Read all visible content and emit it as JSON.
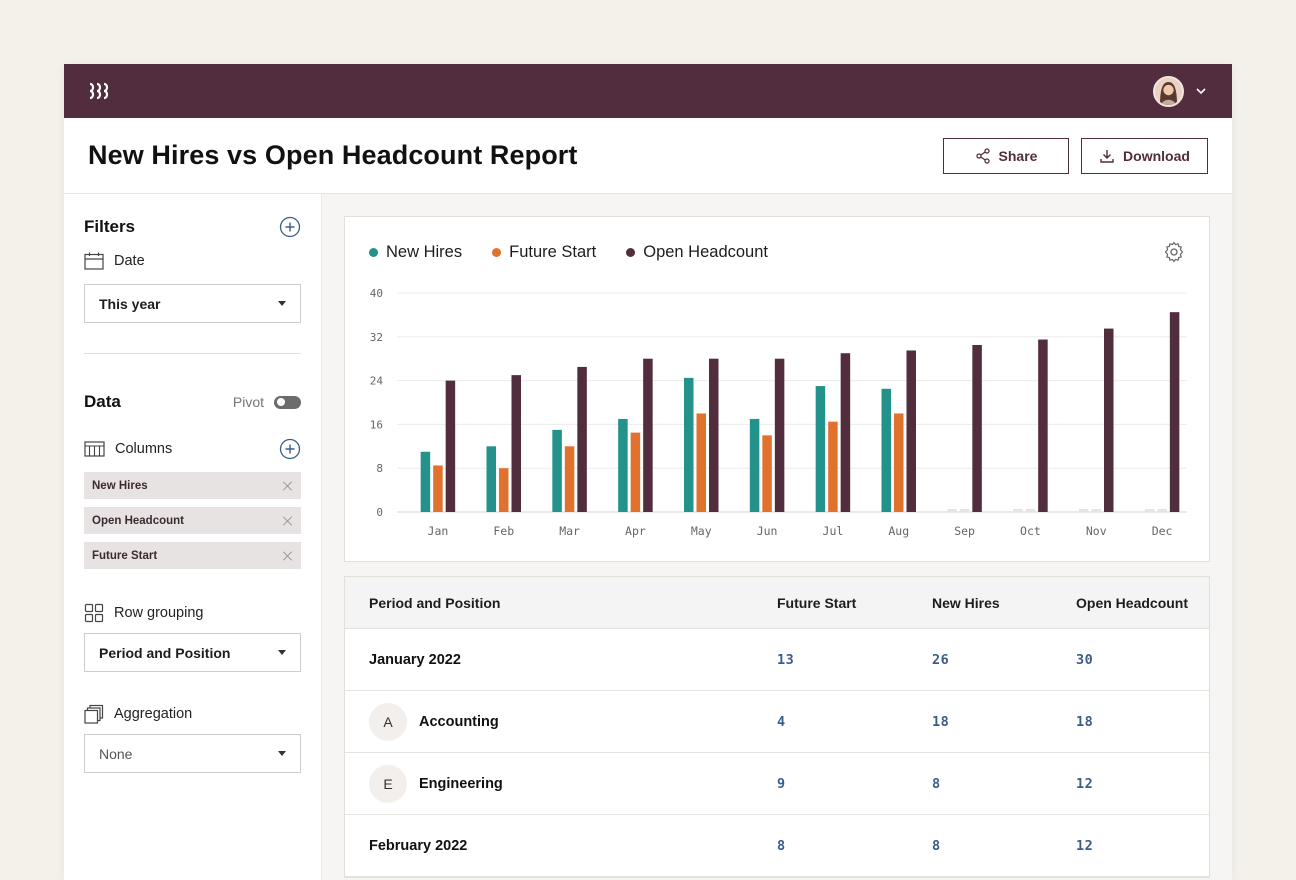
{
  "header": {
    "title": "New Hires vs Open Headcount Report",
    "share_label": "Share",
    "download_label": "Download"
  },
  "filters": {
    "title": "Filters",
    "date_label": "Date",
    "date_value": "This year"
  },
  "data_section": {
    "title": "Data",
    "pivot_label": "Pivot",
    "pivot_on": false,
    "columns_label": "Columns",
    "columns": [
      "New Hires",
      "Open Headcount",
      "Future Start"
    ],
    "row_grouping_label": "Row grouping",
    "row_grouping_value": "Period and Position",
    "aggregation_label": "Aggregation",
    "aggregation_value": "None"
  },
  "colors": {
    "new_hires": "#23928a",
    "future_start": "#e0722e",
    "open_headcount": "#512d3d",
    "empty": "#e4e4e4"
  },
  "chart_data": {
    "type": "bar",
    "categories": [
      "Jan",
      "Feb",
      "Mar",
      "Apr",
      "May",
      "Jun",
      "Jul",
      "Aug",
      "Sep",
      "Oct",
      "Nov",
      "Dec"
    ],
    "series": [
      {
        "name": "New Hires",
        "values": [
          11,
          12,
          15,
          17,
          24.5,
          17,
          23,
          22.5,
          0,
          0,
          0,
          0
        ]
      },
      {
        "name": "Future Start",
        "values": [
          8.5,
          8,
          12,
          14.5,
          18,
          14,
          16.5,
          18,
          0,
          0,
          0,
          0
        ]
      },
      {
        "name": "Open Headcount",
        "values": [
          24,
          25,
          26.5,
          28,
          28,
          28,
          29,
          29.5,
          30.5,
          31.5,
          33.5,
          36.5
        ]
      }
    ],
    "yticks": [
      0,
      8,
      16,
      24,
      32,
      40
    ],
    "ylim": [
      0,
      40
    ],
    "grid": true,
    "legend": "top-left"
  },
  "table": {
    "headers": [
      "Period and Position",
      "Future Start",
      "New Hires",
      "Open Headcount"
    ],
    "rows": [
      {
        "label": "January 2022",
        "initial": "",
        "future_start": "13",
        "new_hires": "26",
        "open_headcount": "30"
      },
      {
        "label": "Accounting",
        "initial": "A",
        "future_start": "4",
        "new_hires": "18",
        "open_headcount": "18"
      },
      {
        "label": "Engineering",
        "initial": "E",
        "future_start": "9",
        "new_hires": "8",
        "open_headcount": "12"
      },
      {
        "label": "February 2022",
        "initial": "",
        "future_start": "8",
        "new_hires": "8",
        "open_headcount": "12"
      }
    ]
  }
}
